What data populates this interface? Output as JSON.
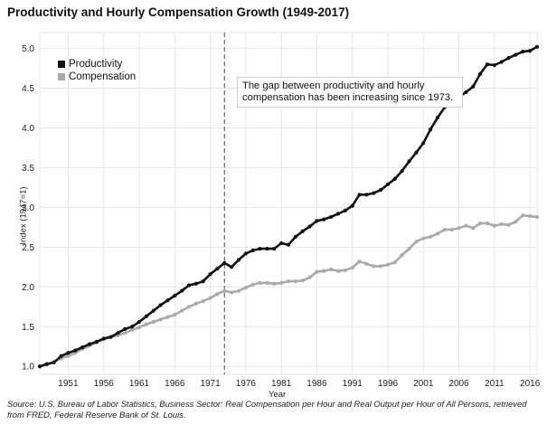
{
  "title": "Productivity and Hourly Compensation Growth (1949-2017)",
  "source": "Source: U.S. Bureau of Labor Statistics, Business Sector: Real Compensation per Hour and Real Output per Hour of All Persons, retrieved from FRED, Federal Reserve Bank of St. Louis.",
  "annotation": "The gap between productivity and hourly compensation has been increasing since 1973.",
  "colors": {
    "productivity": "#111111",
    "compensation": "#aaaaaa",
    "grid": "#e6e6e6",
    "marker_line": "#666666"
  },
  "chart_data": {
    "type": "line",
    "title": "Productivity and Hourly Compensation Growth (1949-2017)",
    "xlabel": "Year",
    "ylabel": "Index (1947=1)",
    "xlim": [
      1947,
      2017
    ],
    "ylim": [
      0.9,
      5.2
    ],
    "x_ticks": [
      1951,
      1956,
      1961,
      1966,
      1971,
      1976,
      1981,
      1986,
      1991,
      1996,
      2001,
      2006,
      2011,
      2016
    ],
    "y_ticks": [
      1.0,
      1.5,
      2.0,
      2.5,
      3.0,
      3.5,
      4.0,
      4.5,
      5.0
    ],
    "y_tick_labels": [
      "1.0",
      "1.5",
      "2.0",
      "2.5",
      "3.0",
      "3.5",
      "4.0",
      "4.5",
      "5.0"
    ],
    "grid": true,
    "legend": "top-left",
    "vertical_marker": 1973,
    "x": [
      1947,
      1948,
      1949,
      1950,
      1951,
      1952,
      1953,
      1954,
      1955,
      1956,
      1957,
      1958,
      1959,
      1960,
      1961,
      1962,
      1963,
      1964,
      1965,
      1966,
      1967,
      1968,
      1969,
      1970,
      1971,
      1972,
      1973,
      1974,
      1975,
      1976,
      1977,
      1978,
      1979,
      1980,
      1981,
      1982,
      1983,
      1984,
      1985,
      1986,
      1987,
      1988,
      1989,
      1990,
      1991,
      1992,
      1993,
      1994,
      1995,
      1996,
      1997,
      1998,
      1999,
      2000,
      2001,
      2002,
      2003,
      2004,
      2005,
      2006,
      2007,
      2008,
      2009,
      2010,
      2011,
      2012,
      2013,
      2014,
      2015,
      2016,
      2017
    ],
    "series": [
      {
        "name": "Productivity",
        "values": [
          1.0,
          1.03,
          1.05,
          1.13,
          1.17,
          1.2,
          1.24,
          1.28,
          1.31,
          1.35,
          1.37,
          1.42,
          1.47,
          1.5,
          1.56,
          1.63,
          1.7,
          1.77,
          1.83,
          1.89,
          1.95,
          2.02,
          2.04,
          2.07,
          2.16,
          2.23,
          2.3,
          2.25,
          2.34,
          2.42,
          2.46,
          2.48,
          2.48,
          2.48,
          2.55,
          2.53,
          2.63,
          2.7,
          2.76,
          2.83,
          2.85,
          2.88,
          2.92,
          2.96,
          3.02,
          3.16,
          3.16,
          3.18,
          3.22,
          3.29,
          3.36,
          3.46,
          3.58,
          3.69,
          3.81,
          3.98,
          4.13,
          4.26,
          4.35,
          4.39,
          4.45,
          4.52,
          4.68,
          4.8,
          4.79,
          4.83,
          4.88,
          4.92,
          4.96,
          4.97,
          5.02
        ]
      },
      {
        "name": "Compensation",
        "values": [
          1.0,
          1.02,
          1.06,
          1.1,
          1.13,
          1.17,
          1.22,
          1.26,
          1.3,
          1.34,
          1.37,
          1.39,
          1.42,
          1.46,
          1.49,
          1.53,
          1.56,
          1.59,
          1.62,
          1.65,
          1.7,
          1.75,
          1.79,
          1.82,
          1.86,
          1.91,
          1.95,
          1.93,
          1.95,
          1.99,
          2.03,
          2.05,
          2.05,
          2.04,
          2.05,
          2.07,
          2.07,
          2.08,
          2.12,
          2.19,
          2.2,
          2.22,
          2.2,
          2.21,
          2.24,
          2.32,
          2.29,
          2.26,
          2.26,
          2.28,
          2.31,
          2.4,
          2.48,
          2.57,
          2.61,
          2.63,
          2.67,
          2.72,
          2.72,
          2.74,
          2.77,
          2.74,
          2.8,
          2.8,
          2.77,
          2.79,
          2.78,
          2.82,
          2.9,
          2.89,
          2.88
        ]
      }
    ]
  }
}
